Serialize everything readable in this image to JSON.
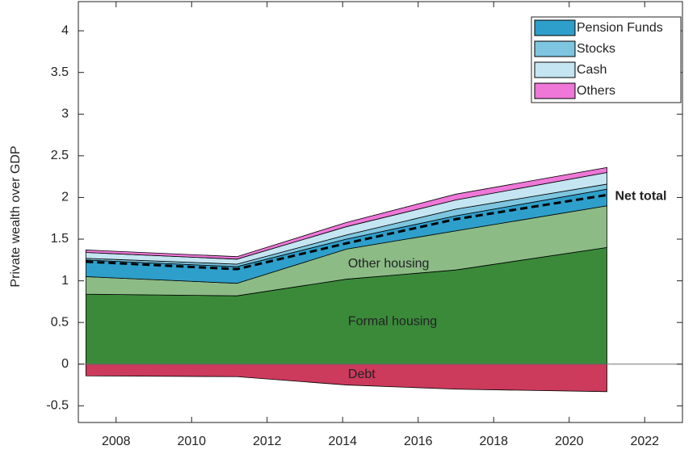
{
  "chart_data": {
    "type": "stacked-area",
    "ylabel": "Private wealth over GDP",
    "x": [
      2007.2,
      2011.2,
      2014.1,
      2017,
      2021
    ],
    "xlim": [
      2007,
      2023
    ],
    "xticks": [
      2008,
      2010,
      2012,
      2014,
      2016,
      2018,
      2020,
      2022
    ],
    "ylim": [
      -0.7,
      4.35
    ],
    "yticks": [
      -0.5,
      0,
      0.5,
      1,
      1.5,
      2,
      2.5,
      3,
      3.5,
      4
    ],
    "legend": "upper right",
    "series": [
      {
        "name": "Formal housing",
        "color": "#3a8a3a",
        "in_legend": false,
        "values": [
          0.84,
          0.82,
          1.02,
          1.13,
          1.4
        ]
      },
      {
        "name": "Other housing",
        "color": "#8cbb86",
        "in_legend": false,
        "values": [
          0.21,
          0.15,
          0.36,
          0.47,
          0.5
        ]
      },
      {
        "name": "Pension Funds",
        "color": "#2e9fcb",
        "in_legend": true,
        "values": [
          0.2,
          0.2,
          0.12,
          0.18,
          0.2
        ]
      },
      {
        "name": "Stocks",
        "color": "#7ec6e0",
        "in_legend": true,
        "values": [
          0.02,
          0.03,
          0.05,
          0.08,
          0.06
        ]
      },
      {
        "name": "Cash",
        "color": "#c4e5f1",
        "in_legend": true,
        "values": [
          0.07,
          0.06,
          0.1,
          0.11,
          0.14
        ]
      },
      {
        "name": "Others",
        "color": "#ee77d8",
        "in_legend": true,
        "values": [
          0.03,
          0.03,
          0.05,
          0.07,
          0.06
        ]
      },
      {
        "name": "Debt",
        "color": "#cc3a5c",
        "in_legend": false,
        "values": [
          -0.14,
          -0.15,
          -0.25,
          -0.3,
          -0.33
        ]
      }
    ],
    "lines": [
      {
        "name": "Net total",
        "color": "#000000",
        "dashed": true,
        "values": [
          1.23,
          1.14,
          1.45,
          1.74,
          2.03
        ]
      }
    ]
  }
}
